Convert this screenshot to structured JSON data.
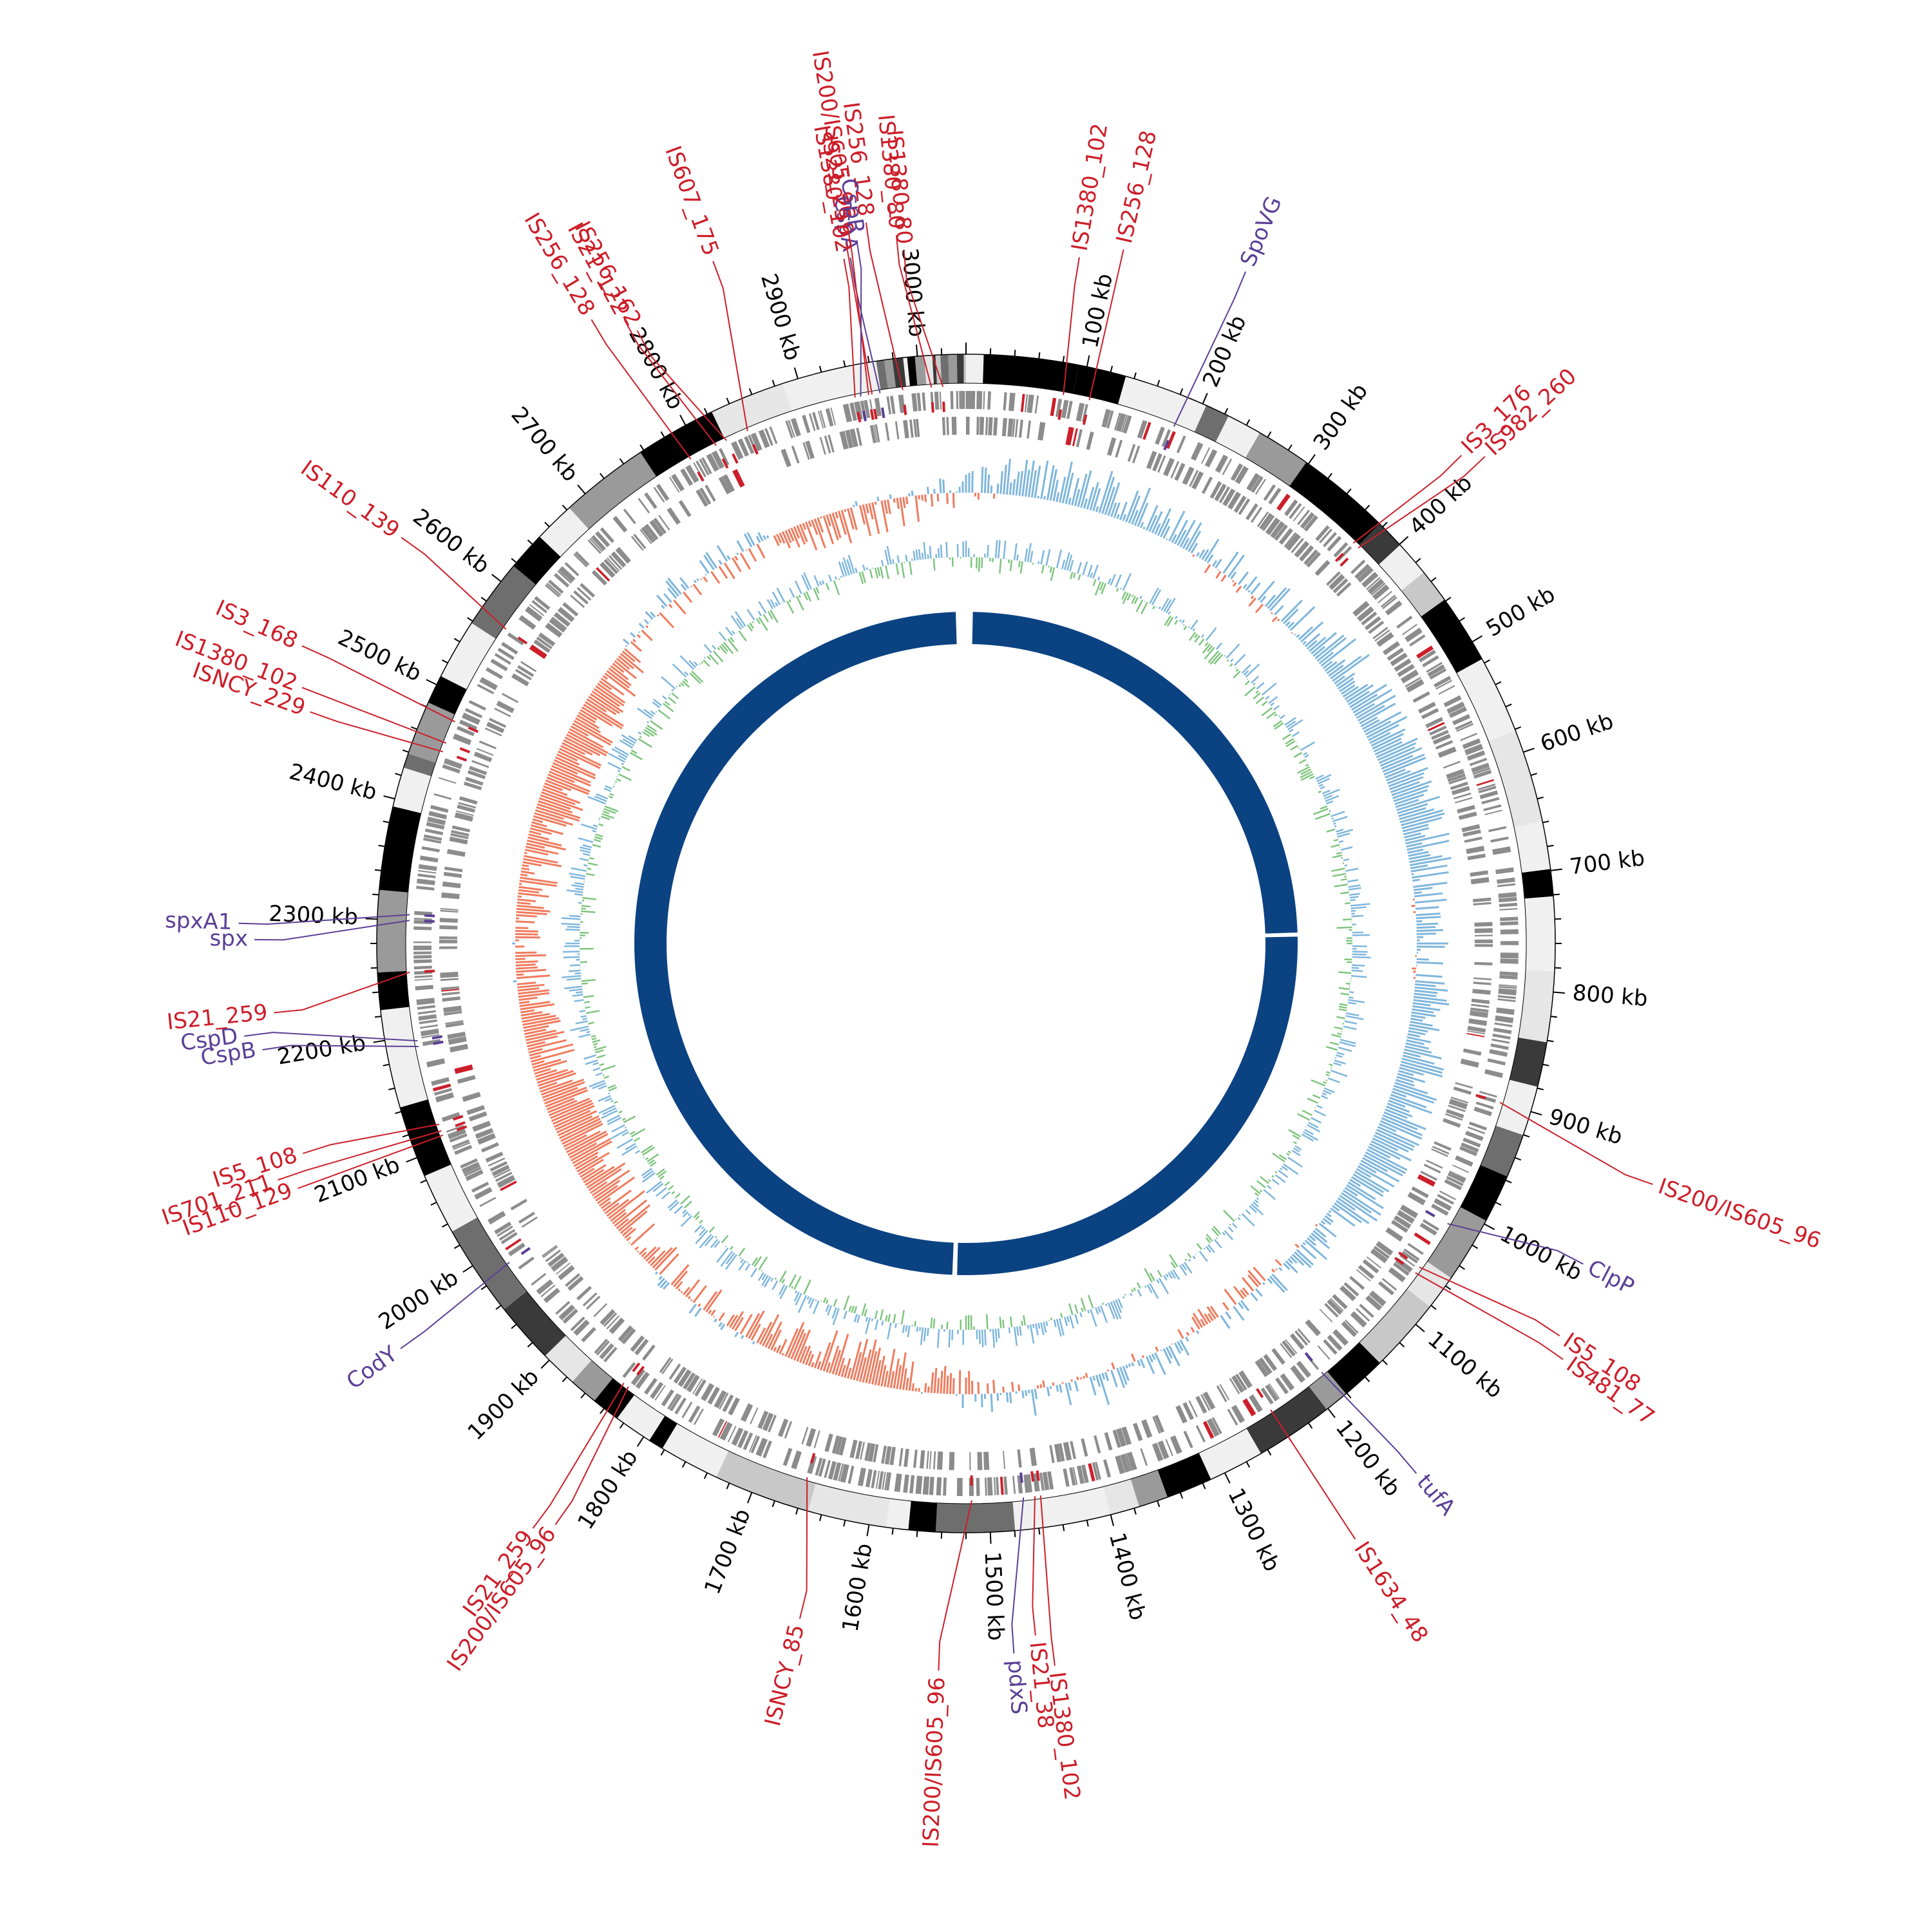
{
  "genome": {
    "length_kb": 3040
  },
  "colors": {
    "is_element": "#cc1f2a",
    "gene": "#5b3f96",
    "gc_skew_pos": "#7fb6dc",
    "gc_skew_neg": "#f07b5e",
    "gc_content": "#7fc47f",
    "homology": "#0b4282",
    "cds": "#8c8c8c",
    "tick": "#000000"
  },
  "scale": {
    "unit": "kb",
    "ticks": [
      {
        "kb": 100,
        "label": "100 kb"
      },
      {
        "kb": 200,
        "label": "200 kb"
      },
      {
        "kb": 300,
        "label": "300 kb"
      },
      {
        "kb": 400,
        "label": "400 kb"
      },
      {
        "kb": 500,
        "label": "500 kb"
      },
      {
        "kb": 600,
        "label": "600 kb"
      },
      {
        "kb": 700,
        "label": "700 kb"
      },
      {
        "kb": 800,
        "label": "800 kb"
      },
      {
        "kb": 900,
        "label": "900 kb"
      },
      {
        "kb": 1000,
        "label": "1000 kb"
      },
      {
        "kb": 1100,
        "label": "1100 kb"
      },
      {
        "kb": 1200,
        "label": "1200 kb"
      },
      {
        "kb": 1300,
        "label": "1300 kb"
      },
      {
        "kb": 1400,
        "label": "1400 kb"
      },
      {
        "kb": 1500,
        "label": "1500 kb"
      },
      {
        "kb": 1600,
        "label": "1600 kb"
      },
      {
        "kb": 1700,
        "label": "1700 kb"
      },
      {
        "kb": 1800,
        "label": "1800 kb"
      },
      {
        "kb": 1900,
        "label": "1900 kb"
      },
      {
        "kb": 2000,
        "label": "2000 kb"
      },
      {
        "kb": 2100,
        "label": "2100 kb"
      },
      {
        "kb": 2200,
        "label": "2200 kb"
      },
      {
        "kb": 2300,
        "label": "2300 kb"
      },
      {
        "kb": 2400,
        "label": "2400 kb"
      },
      {
        "kb": 2500,
        "label": "2500 kb"
      },
      {
        "kb": 2600,
        "label": "2600 kb"
      },
      {
        "kb": 2700,
        "label": "2700 kb"
      },
      {
        "kb": 2800,
        "label": "2800 kb"
      },
      {
        "kb": 2900,
        "label": "2900 kb"
      },
      {
        "kb": 3000,
        "label": "3000 kb"
      }
    ]
  },
  "annotations": [
    {
      "label": "IS1380_80",
      "type": "is",
      "kb": 3020
    },
    {
      "label": "IS1380_80",
      "type": "is",
      "kb": 3010
    },
    {
      "label": "IS256_128",
      "type": "is",
      "kb": 2985
    },
    {
      "label": "CspA",
      "type": "gene",
      "kb": 2965
    },
    {
      "label": "IS21_259",
      "type": "is",
      "kb": 2958
    },
    {
      "label": "IS200/IS605_96",
      "type": "is",
      "kb": 2955
    },
    {
      "label": "IS1380_102",
      "type": "is",
      "kb": 2943
    },
    {
      "label": "CspR",
      "type": "gene",
      "kb": 2948
    },
    {
      "label": "IS607_175",
      "type": "is",
      "kb": 2845
    },
    {
      "label": "IS256_162",
      "type": "is",
      "kb": 2825
    },
    {
      "label": "IS21_122",
      "type": "is",
      "kb": 2815
    },
    {
      "label": "IS256_128",
      "type": "is",
      "kb": 2790
    },
    {
      "label": "IS1380_102",
      "type": "is",
      "kb": 85
    },
    {
      "label": "IS256_128",
      "type": "is",
      "kb": 108
    },
    {
      "label": "SpoVG",
      "type": "gene",
      "kb": 185
    },
    {
      "label": "IS3_176",
      "type": "is",
      "kb": 372
    },
    {
      "label": "IS982_260",
      "type": "is",
      "kb": 378
    },
    {
      "label": "IS200/IS605_96",
      "type": "is",
      "kb": 900
    },
    {
      "label": "ClpP",
      "type": "gene",
      "kb": 1015
    },
    {
      "label": "IS5_108",
      "type": "is",
      "kb": 1060
    },
    {
      "label": "IS481_77",
      "type": "is",
      "kb": 1066
    },
    {
      "label": "tufA",
      "type": "gene",
      "kb": 1185
    },
    {
      "label": "IS1634_48",
      "type": "is",
      "kb": 1240
    },
    {
      "label": "IS1380_102",
      "type": "is",
      "kb": 1455
    },
    {
      "label": "IS21_38",
      "type": "is",
      "kb": 1460
    },
    {
      "label": "pdxS",
      "type": "gene",
      "kb": 1470
    },
    {
      "label": "IS200/IS605_96",
      "type": "is",
      "kb": 1515
    },
    {
      "label": "ISNCY_85",
      "type": "is",
      "kb": 1660
    },
    {
      "label": "IS200/IS605_96",
      "type": "is",
      "kb": 1835
    },
    {
      "label": "IS21_259",
      "type": "is",
      "kb": 1840
    },
    {
      "label": "CodY",
      "type": "gene",
      "kb": 1985
    },
    {
      "label": "IS110_129",
      "type": "is",
      "kb": 2110
    },
    {
      "label": "IS701_211",
      "type": "is",
      "kb": 2114
    },
    {
      "label": "IS5_108",
      "type": "is",
      "kb": 2120
    },
    {
      "label": "CspB",
      "type": "gene",
      "kb": 2190
    },
    {
      "label": "CspD",
      "type": "gene",
      "kb": 2195
    },
    {
      "label": "IS21_259",
      "type": "is",
      "kb": 2255
    },
    {
      "label": "spx",
      "type": "gene",
      "kb": 2300
    },
    {
      "label": "spxA1",
      "type": "gene",
      "kb": 2305
    },
    {
      "label": "ISNCY_229",
      "type": "is",
      "kb": 2450
    },
    {
      "label": "IS1380_102",
      "type": "is",
      "kb": 2458
    },
    {
      "label": "IS3_168",
      "type": "is",
      "kb": 2478
    },
    {
      "label": "IS110_139",
      "type": "is",
      "kb": 2570
    }
  ]
}
